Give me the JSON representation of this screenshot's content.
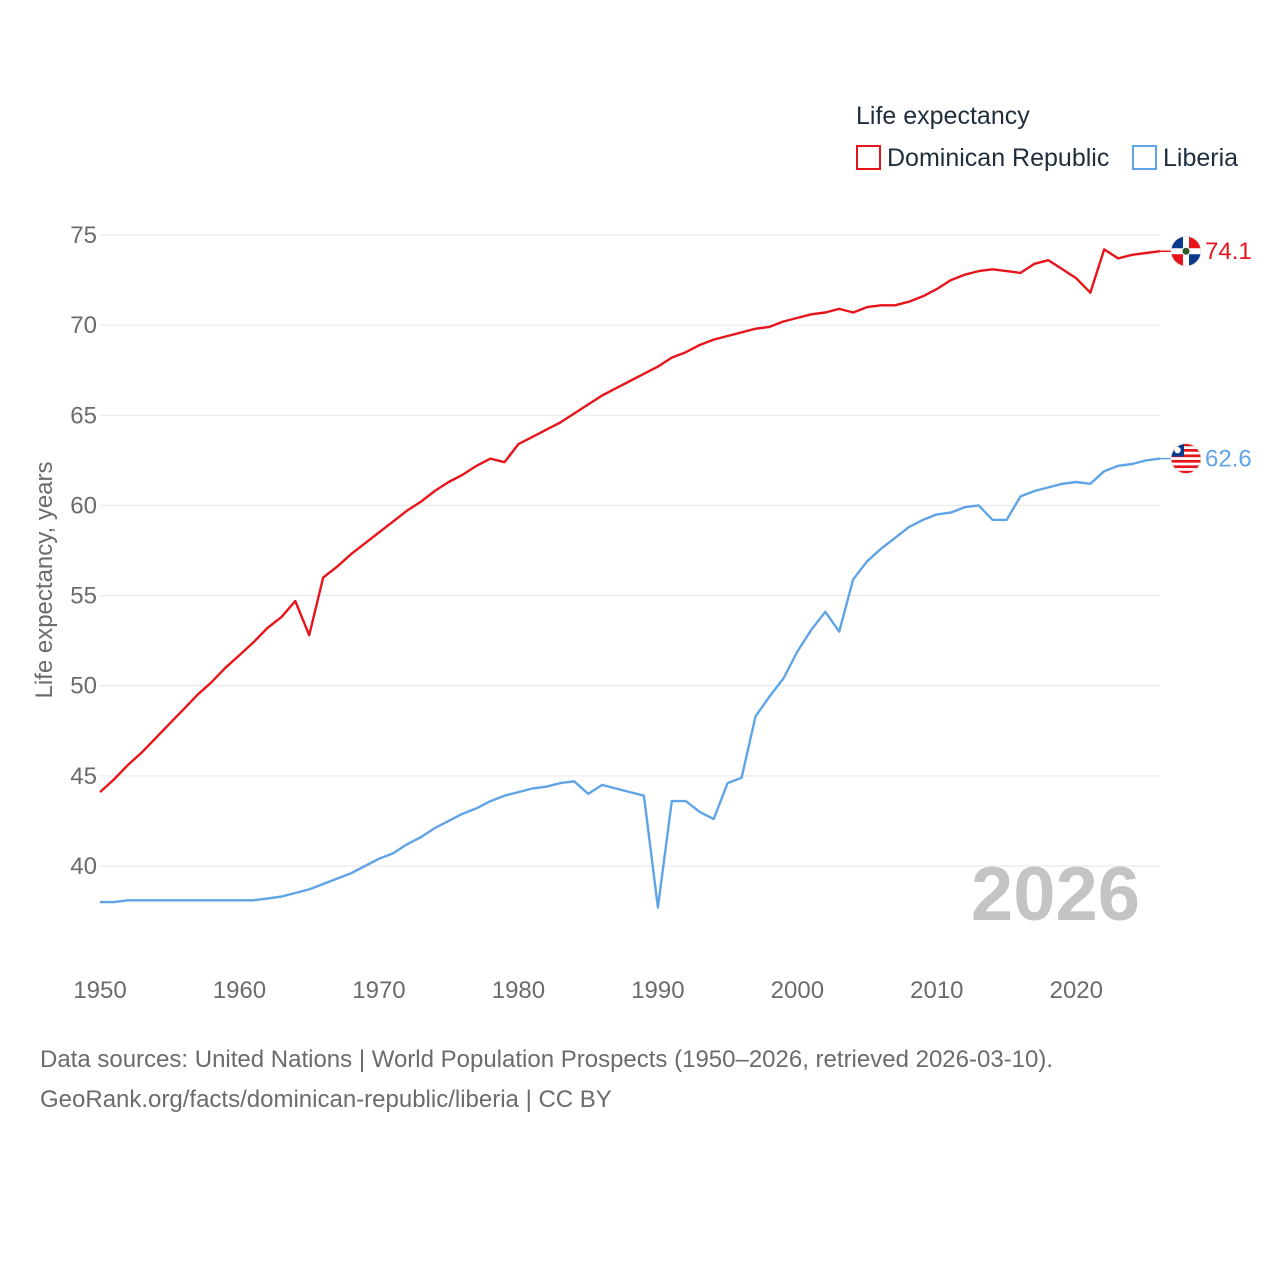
{
  "chart_data": {
    "type": "line",
    "xlabel": "",
    "ylabel": "Life expectancy, years",
    "xlim": [
      1950,
      2026
    ],
    "ylim": [
      36,
      77
    ],
    "y_ticks": [
      40,
      45,
      50,
      55,
      60,
      65,
      70,
      75
    ],
    "x_ticks": [
      1950,
      1960,
      1970,
      1980,
      1990,
      2000,
      2010,
      2020
    ],
    "grid": true,
    "legend": {
      "title": "Life expectancy",
      "position": "top-right"
    },
    "year_label": "2026",
    "series": [
      {
        "name": "Dominican Republic",
        "color": "#e8141c",
        "end_label": "74.1",
        "x": [
          1950,
          1951,
          1952,
          1953,
          1954,
          1955,
          1956,
          1957,
          1958,
          1959,
          1960,
          1961,
          1962,
          1963,
          1964,
          1965,
          1966,
          1967,
          1968,
          1969,
          1970,
          1971,
          1972,
          1973,
          1974,
          1975,
          1976,
          1977,
          1978,
          1979,
          1980,
          1981,
          1982,
          1983,
          1984,
          1985,
          1986,
          1987,
          1988,
          1989,
          1990,
          1991,
          1992,
          1993,
          1994,
          1995,
          1996,
          1997,
          1998,
          1999,
          2000,
          2001,
          2002,
          2003,
          2004,
          2005,
          2006,
          2007,
          2008,
          2009,
          2010,
          2011,
          2012,
          2013,
          2014,
          2015,
          2016,
          2017,
          2018,
          2019,
          2020,
          2021,
          2022,
          2023,
          2024,
          2025,
          2026
        ],
        "values": [
          44.1,
          44.8,
          45.6,
          46.3,
          47.1,
          47.9,
          48.7,
          49.5,
          50.2,
          51.0,
          51.7,
          52.4,
          53.2,
          53.8,
          54.7,
          52.8,
          56.0,
          56.6,
          57.3,
          57.9,
          58.5,
          59.1,
          59.7,
          60.2,
          60.8,
          61.3,
          61.7,
          62.2,
          62.6,
          62.4,
          63.4,
          63.8,
          64.2,
          64.6,
          65.1,
          65.6,
          66.1,
          66.5,
          66.9,
          67.3,
          67.7,
          68.2,
          68.5,
          68.9,
          69.2,
          69.4,
          69.6,
          69.8,
          69.9,
          70.2,
          70.4,
          70.6,
          70.7,
          70.9,
          70.7,
          71.0,
          71.1,
          71.1,
          71.3,
          71.6,
          72.0,
          72.5,
          72.8,
          73.0,
          73.1,
          73.0,
          72.9,
          73.4,
          73.6,
          73.1,
          72.6,
          71.8,
          74.2,
          73.7,
          73.9,
          74.0,
          74.1
        ]
      },
      {
        "name": "Liberia",
        "color": "#5fa4e6",
        "end_label": "62.6",
        "x": [
          1950,
          1951,
          1952,
          1953,
          1954,
          1955,
          1956,
          1957,
          1958,
          1959,
          1960,
          1961,
          1962,
          1963,
          1964,
          1965,
          1966,
          1967,
          1968,
          1969,
          1970,
          1971,
          1972,
          1973,
          1974,
          1975,
          1976,
          1977,
          1978,
          1979,
          1980,
          1981,
          1982,
          1983,
          1984,
          1985,
          1986,
          1987,
          1988,
          1989,
          1990,
          1991,
          1992,
          1993,
          1994,
          1995,
          1996,
          1997,
          1998,
          1999,
          2000,
          2001,
          2002,
          2003,
          2004,
          2005,
          2006,
          2007,
          2008,
          2009,
          2010,
          2011,
          2012,
          2013,
          2014,
          2015,
          2016,
          2017,
          2018,
          2019,
          2020,
          2021,
          2022,
          2023,
          2024,
          2025,
          2026
        ],
        "values": [
          38.0,
          38.0,
          38.1,
          38.1,
          38.1,
          38.1,
          38.1,
          38.1,
          38.1,
          38.1,
          38.1,
          38.1,
          38.2,
          38.3,
          38.5,
          38.7,
          39.0,
          39.3,
          39.6,
          40.0,
          40.4,
          40.7,
          41.2,
          41.6,
          42.1,
          42.5,
          42.9,
          43.2,
          43.6,
          43.9,
          44.1,
          44.3,
          44.4,
          44.6,
          44.7,
          44.0,
          44.5,
          44.3,
          44.1,
          43.9,
          37.7,
          43.6,
          43.6,
          43.0,
          42.6,
          44.6,
          44.9,
          48.3,
          49.4,
          50.4,
          51.9,
          53.1,
          54.1,
          53.0,
          55.9,
          56.9,
          57.6,
          58.2,
          58.8,
          59.2,
          59.5,
          59.6,
          59.9,
          60.0,
          59.2,
          59.2,
          60.5,
          60.8,
          61.0,
          61.2,
          61.3,
          61.2,
          61.9,
          62.2,
          62.3,
          62.5,
          62.6
        ]
      }
    ]
  },
  "footer": {
    "line1": "Data sources: United Nations | World Population Prospects (1950–2026, retrieved 2026-03-10).",
    "line2": "GeoRank.org/facts/dominican-republic/liberia | CC BY"
  }
}
